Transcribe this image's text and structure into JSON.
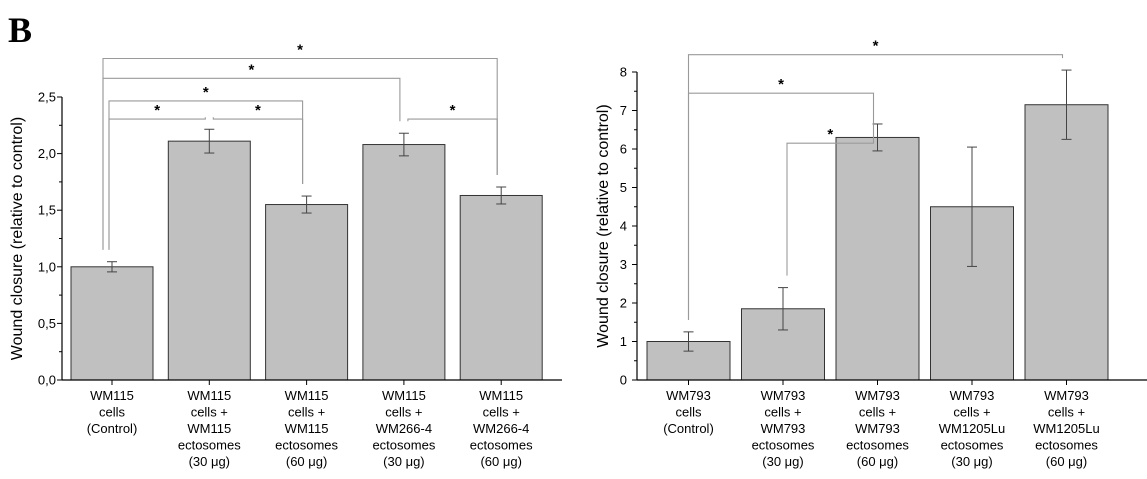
{
  "panel_label": "B",
  "colors": {
    "bar_fill": "#c0c0c0",
    "bar_stroke": "#333333",
    "bracket": "#9a9a9a"
  },
  "chart_data": [
    {
      "type": "bar",
      "title": "",
      "ylabel": "Wound closure (relative to control)",
      "xlabel": "",
      "ylim": [
        0,
        2.5
      ],
      "yticks": [
        "0,0",
        "0,5",
        "1,0",
        "1,5",
        "2,0",
        "2,5"
      ],
      "ytick_values": [
        0,
        0.5,
        1.0,
        1.5,
        2.0,
        2.5
      ],
      "grid": false,
      "categories": [
        [
          "WM115",
          "cells",
          "(Control)"
        ],
        [
          "WM115",
          "cells +",
          "WM115",
          "ectosomes",
          "(30 μg)"
        ],
        [
          "WM115",
          "cells +",
          "WM115",
          "ectosomes",
          "(60 μg)"
        ],
        [
          "WM115",
          "cells +",
          "WM266-4",
          "ectosomes",
          "(30 μg)"
        ],
        [
          "WM115",
          "cells +",
          "WM266-4",
          "ectosomes",
          "(60 μg)"
        ]
      ],
      "values": [
        1.0,
        2.11,
        1.55,
        2.08,
        1.63
      ],
      "errors": [
        0.045,
        0.105,
        0.075,
        0.1,
        0.075
      ],
      "significance": [
        {
          "from": 0,
          "to": 1,
          "label": "*",
          "y": 2.305
        },
        {
          "from": 0,
          "to": 2,
          "label": "*",
          "y": 2.465
        },
        {
          "from": 1,
          "to": 2,
          "label": "*",
          "y": 2.305
        },
        {
          "from": 0,
          "to": 3,
          "label": "*",
          "y": 2.665
        },
        {
          "from": 3,
          "to": 4,
          "label": "*",
          "y": 2.305
        },
        {
          "from": 0,
          "to": 4,
          "label": "*",
          "y": 2.84
        }
      ]
    },
    {
      "type": "bar",
      "title": "",
      "ylabel": "Wound closure (relative to control)",
      "xlabel": "",
      "ylim": [
        0,
        8
      ],
      "yticks": [
        "0",
        "1",
        "2",
        "3",
        "4",
        "5",
        "6",
        "7",
        "8"
      ],
      "ytick_values": [
        0,
        1,
        2,
        3,
        4,
        5,
        6,
        7,
        8
      ],
      "grid": false,
      "categories": [
        [
          "WM793",
          "cells",
          "(Control)"
        ],
        [
          "WM793",
          "cells +",
          "WM793",
          "ectosomes",
          "(30 μg)"
        ],
        [
          "WM793",
          "cells +",
          "WM793",
          "ectosomes",
          "(60 μg)"
        ],
        [
          "WM793",
          "cells +",
          "WM1205Lu",
          "ectosomes",
          "(30 μg)"
        ],
        [
          "WM793",
          "cells +",
          "WM1205Lu",
          "ectosomes",
          "(60 μg)"
        ]
      ],
      "values": [
        1.0,
        1.85,
        6.3,
        4.5,
        7.15
      ],
      "errors": [
        0.25,
        0.55,
        0.35,
        1.55,
        0.9
      ],
      "significance": [
        {
          "from": 1,
          "to": 2,
          "label": "*",
          "y": 6.15
        },
        {
          "from": 0,
          "to": 2,
          "label": "*",
          "y": 7.45
        },
        {
          "from": 0,
          "to": 4,
          "label": "*",
          "y": 8.45
        }
      ]
    }
  ]
}
